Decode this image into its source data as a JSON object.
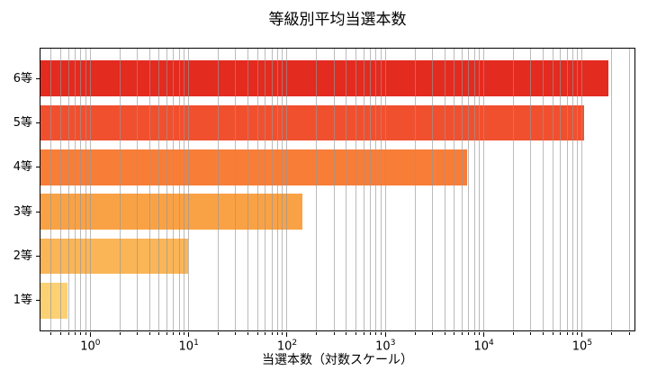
{
  "figure": {
    "background": "#ffffff"
  },
  "chart_data": {
    "type": "bar",
    "orientation": "horizontal",
    "title": "等級別平均当選本数",
    "xlabel": "当選本数（対数スケール）",
    "ylabel": "",
    "xscale": "log",
    "xlim": [
      0.305,
      347000
    ],
    "grid": true,
    "grid_on_top_of_bars": true,
    "grid_color": "#b0b0b0",
    "axis_color": "#000000",
    "categories": [
      "6等",
      "5等",
      "4等",
      "3等",
      "2等",
      "1等"
    ],
    "values": [
      184000,
      104000,
      6800,
      143,
      9.8,
      0.58
    ],
    "bar_colors": [
      "#e32b20",
      "#f1502f",
      "#f87e37",
      "#f9a245",
      "#fab557",
      "#fbd174"
    ],
    "x_major_tick_exponents": [
      0,
      1,
      2,
      3,
      4,
      5
    ],
    "x_tick_base": "10"
  }
}
